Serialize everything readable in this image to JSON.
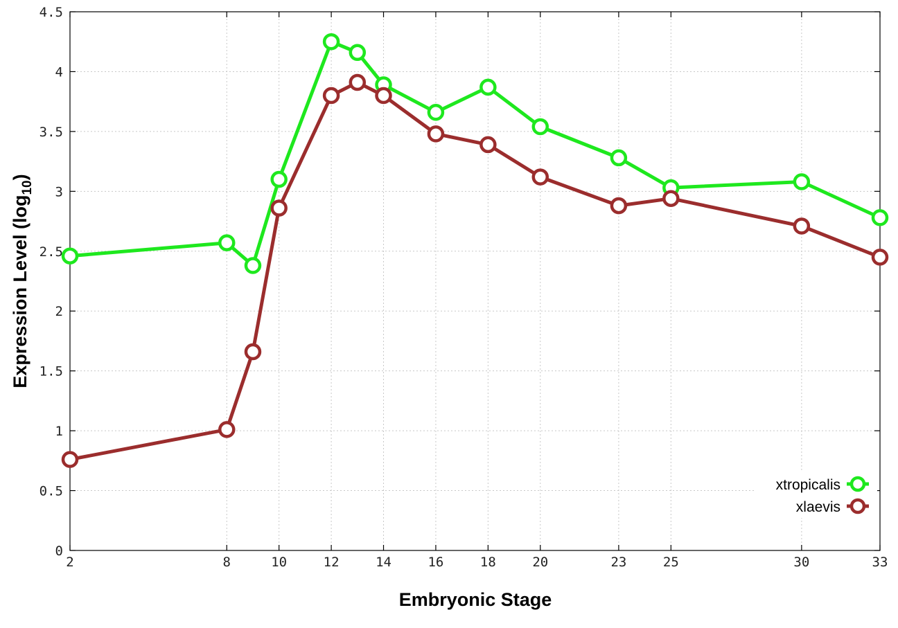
{
  "chart_data": {
    "type": "line",
    "xlabel": "Embryonic Stage",
    "ylabel": "Expression Level (log",
    "ylabel_subscript": "10",
    "ylabel_suffix": ")",
    "x": [
      2,
      8,
      9,
      10,
      12,
      13,
      14,
      16,
      18,
      20,
      23,
      25,
      30,
      33
    ],
    "xticks": [
      2,
      8,
      10,
      12,
      14,
      16,
      18,
      20,
      23,
      25,
      30,
      33
    ],
    "xtick_labels": [
      "2",
      "8",
      "10",
      "12",
      "14",
      "16",
      "18",
      "20",
      "23",
      "25",
      "30",
      "33"
    ],
    "yticks": [
      0,
      0.5,
      1,
      1.5,
      2,
      2.5,
      3,
      3.5,
      4,
      4.5
    ],
    "ytick_labels": [
      "0",
      "0.5",
      "1",
      "1.5",
      "2",
      "2.5",
      "3",
      "3.5",
      "4",
      "4.5"
    ],
    "xlim": [
      2,
      33
    ],
    "ylim": [
      0,
      4.5
    ],
    "grid": true,
    "legend_position": "bottom-right",
    "series": [
      {
        "name": "xtropicalis",
        "color": "#1ee81e",
        "values": [
          2.46,
          2.57,
          2.38,
          3.1,
          4.25,
          4.16,
          3.89,
          3.66,
          3.87,
          3.54,
          3.28,
          3.03,
          3.08,
          2.78
        ]
      },
      {
        "name": "xlaevis",
        "color": "#9b2d2d",
        "values": [
          0.76,
          1.01,
          1.66,
          2.86,
          3.8,
          3.91,
          3.8,
          3.48,
          3.39,
          3.12,
          2.88,
          2.94,
          2.71,
          2.45
        ]
      }
    ]
  }
}
